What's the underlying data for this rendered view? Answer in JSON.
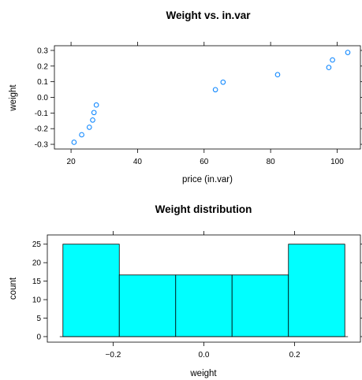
{
  "chart_data": [
    {
      "type": "scatter",
      "title": "Weight vs. in.var",
      "xlabel": "price (in.var)",
      "ylabel": "weight",
      "xlim": [
        15,
        107
      ],
      "ylim": [
        -0.33,
        0.33
      ],
      "x_ticks": [
        20,
        40,
        60,
        80,
        100
      ],
      "x_tick_labels": [
        "20",
        "40",
        "60",
        "80",
        "100"
      ],
      "y_ticks": [
        -0.3,
        -0.2,
        -0.1,
        0.0,
        0.1,
        0.2,
        0.3
      ],
      "y_tick_labels": [
        "-0.3",
        "-0.2",
        "-0.1",
        "0.0",
        "0.1",
        "0.2",
        "0.3"
      ],
      "x": [
        20.9,
        23.2,
        25.5,
        26.5,
        26.9,
        27.6,
        63.4,
        65.7,
        82.1,
        97.5,
        98.6,
        103.2
      ],
      "y": [
        -0.287,
        -0.239,
        -0.191,
        -0.145,
        -0.097,
        -0.049,
        0.049,
        0.097,
        0.145,
        0.191,
        0.239,
        0.287
      ],
      "color": "#0080ff",
      "grid": false
    },
    {
      "type": "bar",
      "title": "Weight distribution",
      "xlabel": "weight",
      "ylabel": "count",
      "xlim": [
        -0.345,
        0.345
      ],
      "ylim": [
        -1.5,
        27.5
      ],
      "x_ticks": [
        -0.2,
        0.0,
        0.2
      ],
      "x_tick_labels": [
        "−0.2",
        "0.0",
        "0.2"
      ],
      "y_ticks": [
        0,
        5,
        10,
        15,
        20,
        25
      ],
      "y_tick_labels": [
        "0",
        "5",
        "10",
        "15",
        "20",
        "25"
      ],
      "bin_edges": [
        -0.3106,
        -0.1864,
        -0.0621,
        0.0621,
        0.1864,
        0.3106
      ],
      "values": [
        25,
        16.67,
        16.67,
        16.67,
        25
      ],
      "color": "#00ffff",
      "grid": false
    }
  ]
}
